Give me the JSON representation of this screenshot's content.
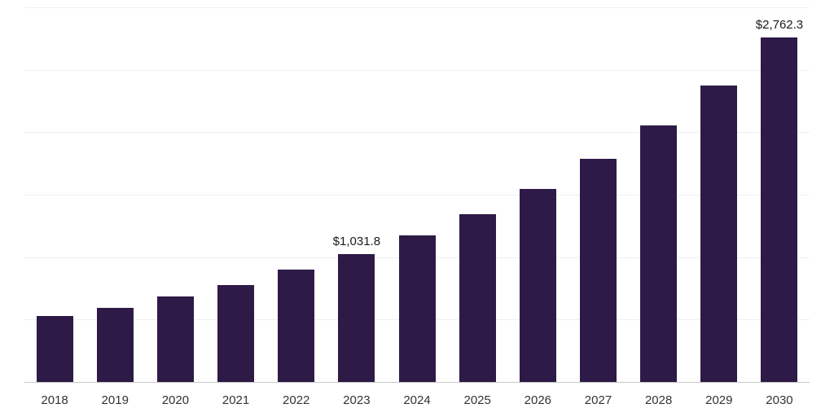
{
  "chart_data": {
    "type": "bar",
    "title": "",
    "xlabel": "",
    "ylabel": "",
    "categories": [
      "2018",
      "2019",
      "2020",
      "2021",
      "2022",
      "2023",
      "2024",
      "2025",
      "2026",
      "2027",
      "2028",
      "2029",
      "2030"
    ],
    "values": [
      535,
      600,
      690,
      780,
      905,
      1031.8,
      1180,
      1352,
      1555,
      1792,
      2060,
      2380,
      2762.3
    ],
    "data_labels": [
      "",
      "",
      "",
      "",
      "",
      "$1,031.8",
      "",
      "",
      "",
      "",
      "",
      "",
      "$2,762.3"
    ],
    "ylim": [
      0,
      3000
    ],
    "grid": true,
    "gridline_step": 500,
    "legend": "none",
    "bar_color": "#2e1a47",
    "gridline_color": "#efefef",
    "axis_line_color": "#c9c9c9",
    "value_label_color": "#1a1a1a",
    "tick_label_color": "#333333"
  }
}
